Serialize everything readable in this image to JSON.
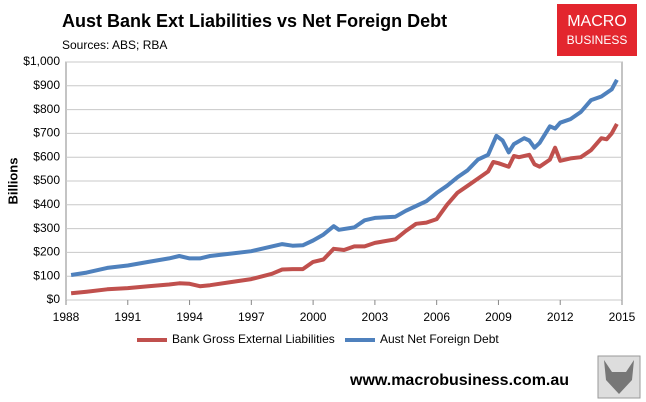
{
  "chart_data": {
    "type": "line",
    "title": "Aust Bank Ext Liabilities vs Net Foreign Debt",
    "subtitle": "Sources: ABS; RBA",
    "y_label": "Billions",
    "logo": [
      "MACRO",
      "BUSINESS"
    ],
    "website": "www.macrobusiness.com.au",
    "xlim": [
      1988,
      2015
    ],
    "xticks": [
      1988,
      1991,
      1994,
      1997,
      2000,
      2003,
      2006,
      2009,
      2012,
      2015
    ],
    "ylim": [
      0,
      1000
    ],
    "yticks": [
      {
        "value": 0,
        "label": "$0"
      },
      {
        "value": 100,
        "label": "$100"
      },
      {
        "value": 200,
        "label": "$200"
      },
      {
        "value": 300,
        "label": "$300"
      },
      {
        "value": 400,
        "label": "$400"
      },
      {
        "value": 500,
        "label": "$500"
      },
      {
        "value": 600,
        "label": "$600"
      },
      {
        "value": 700,
        "label": "$700"
      },
      {
        "value": 800,
        "label": "$800"
      },
      {
        "value": 900,
        "label": "$900"
      },
      {
        "value": 1000,
        "label": "$1,000"
      }
    ],
    "grid": true,
    "legend": "bottom",
    "series": [
      {
        "name": "Bank Gross External Liabilities",
        "color": "#c0504d",
        "x": [
          1988.25,
          1989,
          1990,
          1991,
          1992,
          1993,
          1993.5,
          1994,
          1994.5,
          1995,
          1996,
          1997,
          1998,
          1998.5,
          1999,
          1999.5,
          2000,
          2000.5,
          2001,
          2001.5,
          2002,
          2002.5,
          2003,
          2004,
          2004.5,
          2005,
          2005.5,
          2006,
          2006.5,
          2007,
          2007.5,
          2008,
          2008.5,
          2008.75,
          2009,
          2009.5,
          2009.75,
          2010,
          2010.5,
          2010.75,
          2011,
          2011.5,
          2011.75,
          2012,
          2012.5,
          2013,
          2013.5,
          2014,
          2014.25,
          2014.5,
          2014.75
        ],
        "values": [
          28,
          35,
          45,
          50,
          58,
          65,
          70,
          68,
          58,
          62,
          75,
          88,
          110,
          128,
          130,
          130,
          160,
          170,
          215,
          210,
          225,
          225,
          240,
          255,
          290,
          320,
          325,
          340,
          400,
          450,
          480,
          510,
          540,
          580,
          575,
          560,
          605,
          600,
          610,
          570,
          560,
          590,
          640,
          585,
          595,
          600,
          630,
          680,
          675,
          700,
          740
        ]
      },
      {
        "name": "Aust Net Foreign Debt",
        "color": "#4f81bd",
        "x": [
          1988.25,
          1989,
          1990,
          1991,
          1992,
          1993,
          1993.5,
          1994,
          1994.5,
          1995,
          1996,
          1997,
          1998,
          1998.5,
          1999,
          1999.5,
          2000,
          2000.5,
          2001,
          2001.25,
          2002,
          2002.5,
          2003,
          2004,
          2004.5,
          2005,
          2005.5,
          2006,
          2006.5,
          2007,
          2007.5,
          2008,
          2008.5,
          2008.9,
          2009.2,
          2009.5,
          2009.75,
          2010.25,
          2010.5,
          2010.75,
          2011,
          2011.5,
          2011.75,
          2012,
          2012.5,
          2013,
          2013.5,
          2014,
          2014.5,
          2014.75
        ],
        "values": [
          105,
          115,
          135,
          145,
          160,
          175,
          185,
          175,
          175,
          185,
          195,
          205,
          225,
          235,
          228,
          230,
          250,
          275,
          310,
          295,
          305,
          335,
          345,
          350,
          375,
          395,
          415,
          450,
          480,
          515,
          545,
          590,
          610,
          690,
          670,
          620,
          655,
          680,
          670,
          640,
          660,
          730,
          720,
          745,
          760,
          790,
          840,
          855,
          885,
          925
        ]
      }
    ]
  }
}
